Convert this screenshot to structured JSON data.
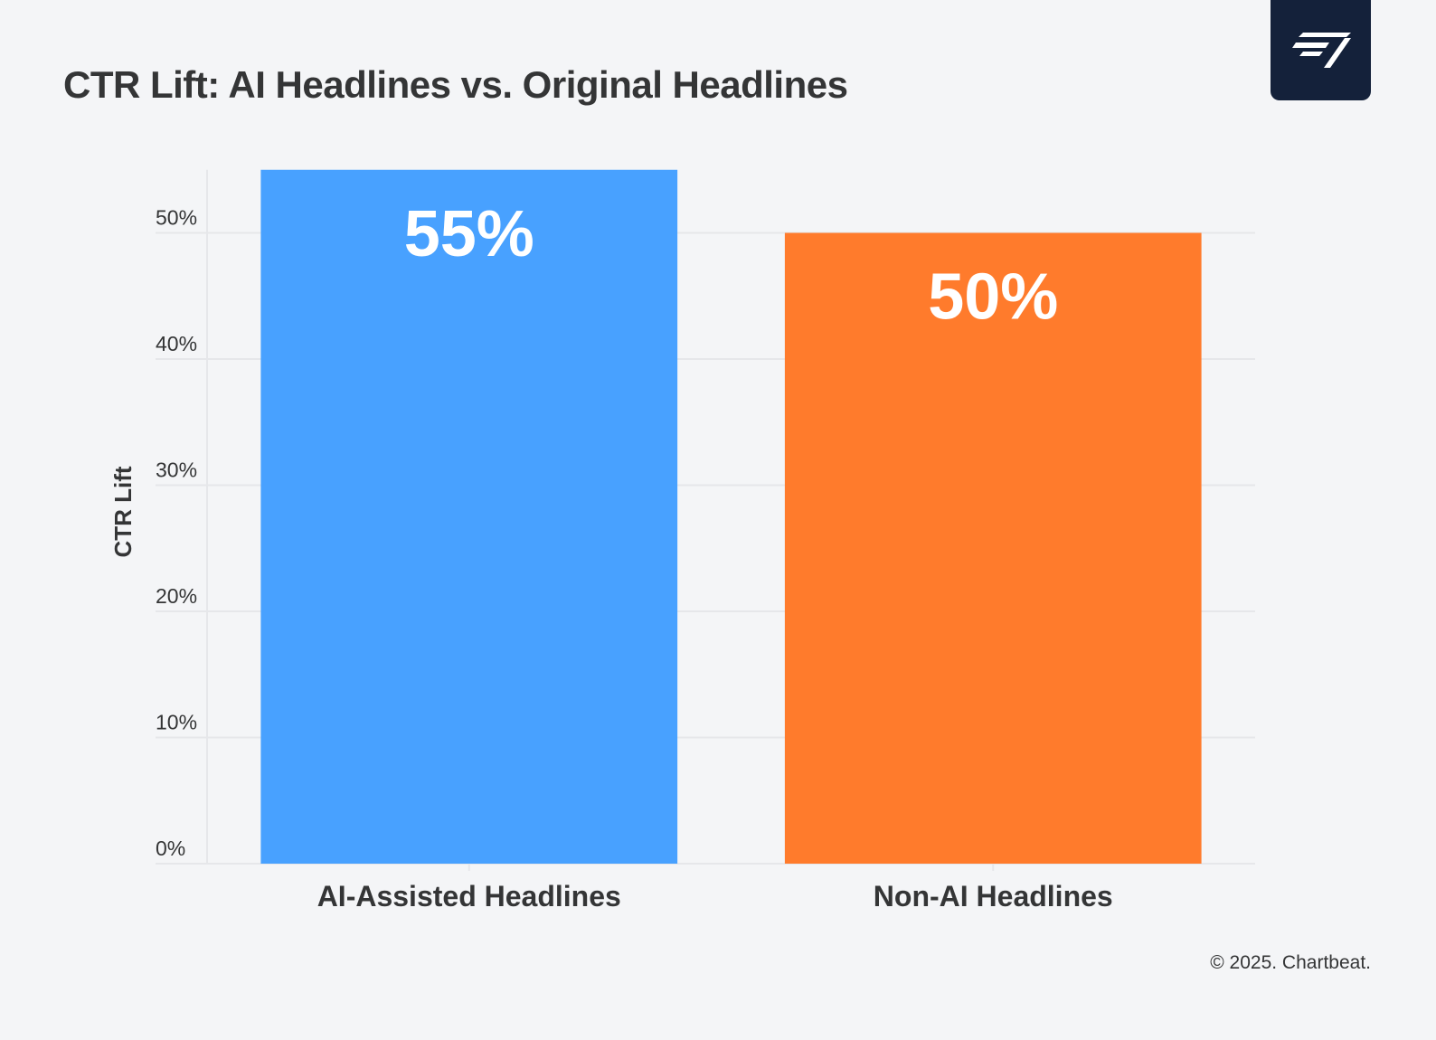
{
  "brand": {
    "logo_icon": "chartbeat-logo-icon",
    "logo_bg": "#14213a"
  },
  "footer": {
    "copyright": "© 2025. Chartbeat."
  },
  "chart_data": {
    "type": "bar",
    "title": "CTR Lift: AI Headlines vs. Original Headlines",
    "xlabel": "",
    "ylabel": "CTR Lift",
    "ylim": [
      0,
      55
    ],
    "yticks": [
      0,
      10,
      20,
      30,
      40,
      50
    ],
    "ytick_labels": [
      "0%",
      "10%",
      "20%",
      "30%",
      "40%",
      "50%"
    ],
    "categories": [
      "AI-Assisted Headlines",
      "Non-AI Headlines"
    ],
    "values": [
      55,
      50
    ],
    "value_labels": [
      "55%",
      "50%"
    ],
    "colors": [
      "#48a1ff",
      "#ff7b2c"
    ],
    "grid": true,
    "legend": "none"
  }
}
